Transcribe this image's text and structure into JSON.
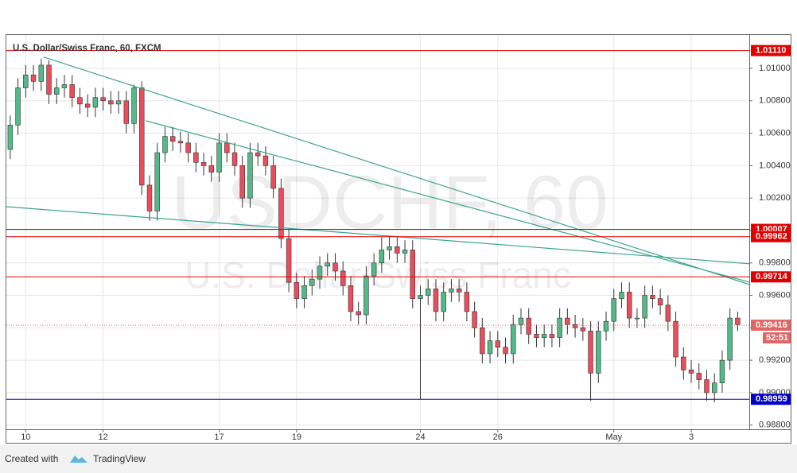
{
  "chart_data": {
    "type": "candlestick",
    "title": "U.S. Dollar/Swiss Franc, 60, FXCM",
    "watermark": "USDCHF, 60",
    "watermark_subtitle": "U.S. Dollar/Swiss Franc",
    "footer_prefix": "Created with",
    "footer_brand": "TradingView",
    "up_color": "#53b987",
    "down_color": "#eb4d5c",
    "wick_color": "#333333",
    "open": [
      1.005,
      1.0065,
      1.0088,
      1.0096,
      1.0092,
      1.0102,
      1.0084,
      1.0088,
      1.009,
      1.0082,
      1.0078,
      1.0076,
      1.0082,
      1.008,
      1.0078,
      1.008,
      1.0066,
      1.0088,
      1.0028,
      1.0012,
      1.0048,
      1.0058,
      1.0055,
      1.0054,
      1.0048,
      1.0042,
      1.004,
      1.0036,
      1.0054,
      1.0048,
      1.004,
      1.002,
      1.0048,
      1.0046,
      1.004,
      1.0026,
      0.9995,
      0.9968,
      0.9958,
      0.9966,
      0.997,
      0.9978,
      0.998,
      0.9975,
      0.9966,
      0.995,
      0.9948,
      0.9972,
      0.998,
      0.9988,
      0.999,
      0.9986,
      0.9988,
      0.9958,
      0.996,
      0.9964,
      0.995,
      0.9962,
      0.9964,
      0.9962,
      0.995,
      0.994,
      0.9924,
      0.9932,
      0.9928,
      0.9924,
      0.9942,
      0.9946,
      0.9936,
      0.9934,
      0.9936,
      0.9934,
      0.9946,
      0.9942,
      0.994,
      0.9938,
      0.9912,
      0.9938,
      0.9944,
      0.9958,
      0.9962,
      0.9946,
      0.9946,
      0.996,
      0.9958,
      0.9954,
      0.9944,
      0.9922,
      0.9914,
      0.9912,
      0.9908,
      0.99,
      0.9906,
      0.992,
      0.9946
    ],
    "high": [
      1.0071,
      1.0094,
      1.0102,
      1.0102,
      1.0106,
      1.0105,
      1.0094,
      1.0096,
      1.0096,
      1.0088,
      1.0084,
      1.0088,
      1.0088,
      1.0086,
      1.0086,
      1.0086,
      1.009,
      1.0092,
      1.0034,
      1.0054,
      1.0064,
      1.0064,
      1.0061,
      1.006,
      1.0054,
      1.0048,
      1.0046,
      1.006,
      1.006,
      1.0054,
      1.0046,
      1.0054,
      1.0054,
      1.0052,
      1.0046,
      1.0032,
      1.0001,
      0.9974,
      0.9972,
      0.9976,
      0.9984,
      0.9986,
      0.9986,
      0.9981,
      0.9972,
      0.9956,
      0.9978,
      0.9986,
      0.9996,
      0.9996,
      0.9996,
      0.9994,
      0.9994,
      0.9966,
      0.997,
      0.997,
      0.9968,
      0.997,
      0.997,
      0.9968,
      0.9956,
      0.9946,
      0.9938,
      0.9938,
      0.9934,
      0.9948,
      0.9952,
      0.9952,
      0.9942,
      0.9942,
      0.9942,
      0.9952,
      0.9952,
      0.9948,
      0.9946,
      0.9944,
      0.9944,
      0.995,
      0.9964,
      0.9968,
      0.9968,
      0.9952,
      0.9966,
      0.9966,
      0.9964,
      0.996,
      0.995,
      0.9928,
      0.992,
      0.9918,
      0.9914,
      0.9912,
      0.9926,
      0.9952,
      0.995
    ],
    "low": [
      1.0044,
      1.0059,
      1.0082,
      1.0086,
      1.0086,
      1.0078,
      1.0078,
      1.0082,
      1.0076,
      1.0072,
      1.007,
      1.007,
      1.0074,
      1.0072,
      1.0072,
      1.006,
      1.006,
      1.0022,
      1.0006,
      1.0006,
      1.0042,
      1.0049,
      1.0048,
      1.0042,
      1.0036,
      1.0034,
      1.003,
      1.003,
      1.0042,
      1.0034,
      1.0014,
      1.0014,
      1.004,
      1.0034,
      1.002,
      0.9989,
      0.9962,
      0.9952,
      0.9952,
      0.996,
      0.9964,
      0.9972,
      0.9969,
      0.996,
      0.9944,
      0.9942,
      0.9942,
      0.9966,
      0.9974,
      0.9982,
      0.998,
      0.998,
      0.9952,
      0.9896,
      0.9954,
      0.9944,
      0.9944,
      0.9956,
      0.9956,
      0.9944,
      0.9934,
      0.9918,
      0.9918,
      0.9922,
      0.9918,
      0.9918,
      0.9936,
      0.993,
      0.9928,
      0.9928,
      0.9928,
      0.9928,
      0.9936,
      0.9934,
      0.9932,
      0.9895,
      0.9906,
      0.9932,
      0.9938,
      0.9952,
      0.994,
      0.994,
      0.994,
      0.9952,
      0.9948,
      0.9938,
      0.9916,
      0.9908,
      0.9906,
      0.9902,
      0.9895,
      0.9894,
      0.99,
      0.9914,
      0.9938
    ],
    "close": [
      1.0065,
      1.0088,
      1.0096,
      1.0092,
      1.0102,
      1.0084,
      1.0088,
      1.009,
      1.0082,
      1.0078,
      1.0076,
      1.0082,
      1.008,
      1.0078,
      1.008,
      1.0066,
      1.0088,
      1.0028,
      1.0012,
      1.0048,
      1.0058,
      1.0055,
      1.0054,
      1.0048,
      1.0042,
      1.004,
      1.0036,
      1.0054,
      1.0048,
      1.004,
      1.002,
      1.0048,
      1.0046,
      1.004,
      1.0026,
      0.9995,
      0.9968,
      0.9958,
      0.9966,
      0.997,
      0.9978,
      0.998,
      0.9975,
      0.9966,
      0.995,
      0.9948,
      0.9972,
      0.998,
      0.9988,
      0.999,
      0.9986,
      0.9988,
      0.9958,
      0.996,
      0.9964,
      0.995,
      0.9962,
      0.9964,
      0.9962,
      0.995,
      0.994,
      0.9924,
      0.9932,
      0.9928,
      0.9924,
      0.9942,
      0.9946,
      0.9936,
      0.9934,
      0.9936,
      0.9934,
      0.9946,
      0.9942,
      0.994,
      0.9938,
      0.9912,
      0.9938,
      0.9944,
      0.9958,
      0.9962,
      0.9946,
      0.9946,
      0.996,
      0.9958,
      0.9954,
      0.9944,
      0.9922,
      0.9914,
      0.9912,
      0.9908,
      0.99,
      0.9906,
      0.992,
      0.9946,
      0.9942
    ],
    "xlim": [
      -0.5,
      95.5
    ],
    "xticks": [
      {
        "value": 2,
        "label": "10"
      },
      {
        "value": 12,
        "label": "12"
      },
      {
        "value": 27,
        "label": "17"
      },
      {
        "value": 37,
        "label": "19"
      },
      {
        "value": 53,
        "label": "24"
      },
      {
        "value": 63,
        "label": "26"
      },
      {
        "value": 78,
        "label": "May"
      },
      {
        "value": 88,
        "label": "3"
      }
    ],
    "ylim": [
      0.98774,
      1.01206
    ],
    "yticks": [
      {
        "value": 0.988,
        "label": "0.98800"
      },
      {
        "value": 0.99,
        "label": "0.99000"
      },
      {
        "value": 0.992,
        "label": "0.99200"
      },
      {
        "value": 0.994,
        "label": "0.99400"
      },
      {
        "value": 0.996,
        "label": "0.99600"
      },
      {
        "value": 0.998,
        "label": "0.99800"
      },
      {
        "value": 1.0,
        "label": "1.00000"
      },
      {
        "value": 1.002,
        "label": "1.00200"
      },
      {
        "value": 1.004,
        "label": "1.00400"
      },
      {
        "value": 1.006,
        "label": "1.00600"
      },
      {
        "value": 1.008,
        "label": "1.00800"
      },
      {
        "value": 1.01,
        "label": "1.01000"
      }
    ],
    "grid": true,
    "levels": [
      {
        "value": 1.0111,
        "label": "1.01110",
        "color": "#e00000"
      },
      {
        "value": 1.00007,
        "label": "1.00007",
        "color": "#e00000"
      },
      {
        "value": 0.99962,
        "label": "0.99962",
        "color": "#e00000"
      },
      {
        "value": 0.99714,
        "label": "0.99714",
        "color": "#e00000"
      },
      {
        "value": 0.98959,
        "label": "0.98959",
        "color": "#0000c8"
      }
    ],
    "last_price": {
      "value": 0.99416,
      "label": "0.99416",
      "countdown": "52:51",
      "color": "#e06666"
    },
    "trendlines": [
      {
        "x": [
          4.3,
          95.5
        ],
        "y": [
          1.0107,
          0.99667
        ],
        "color": "#3aa58f"
      },
      {
        "x": [
          17.5,
          95.5
        ],
        "y": [
          1.00677,
          0.99682
        ],
        "color": "#3aa58f"
      },
      {
        "x": [
          -0.5,
          95.5
        ],
        "y": [
          1.00147,
          0.99795
        ],
        "color": "#3aa58f"
      }
    ]
  }
}
